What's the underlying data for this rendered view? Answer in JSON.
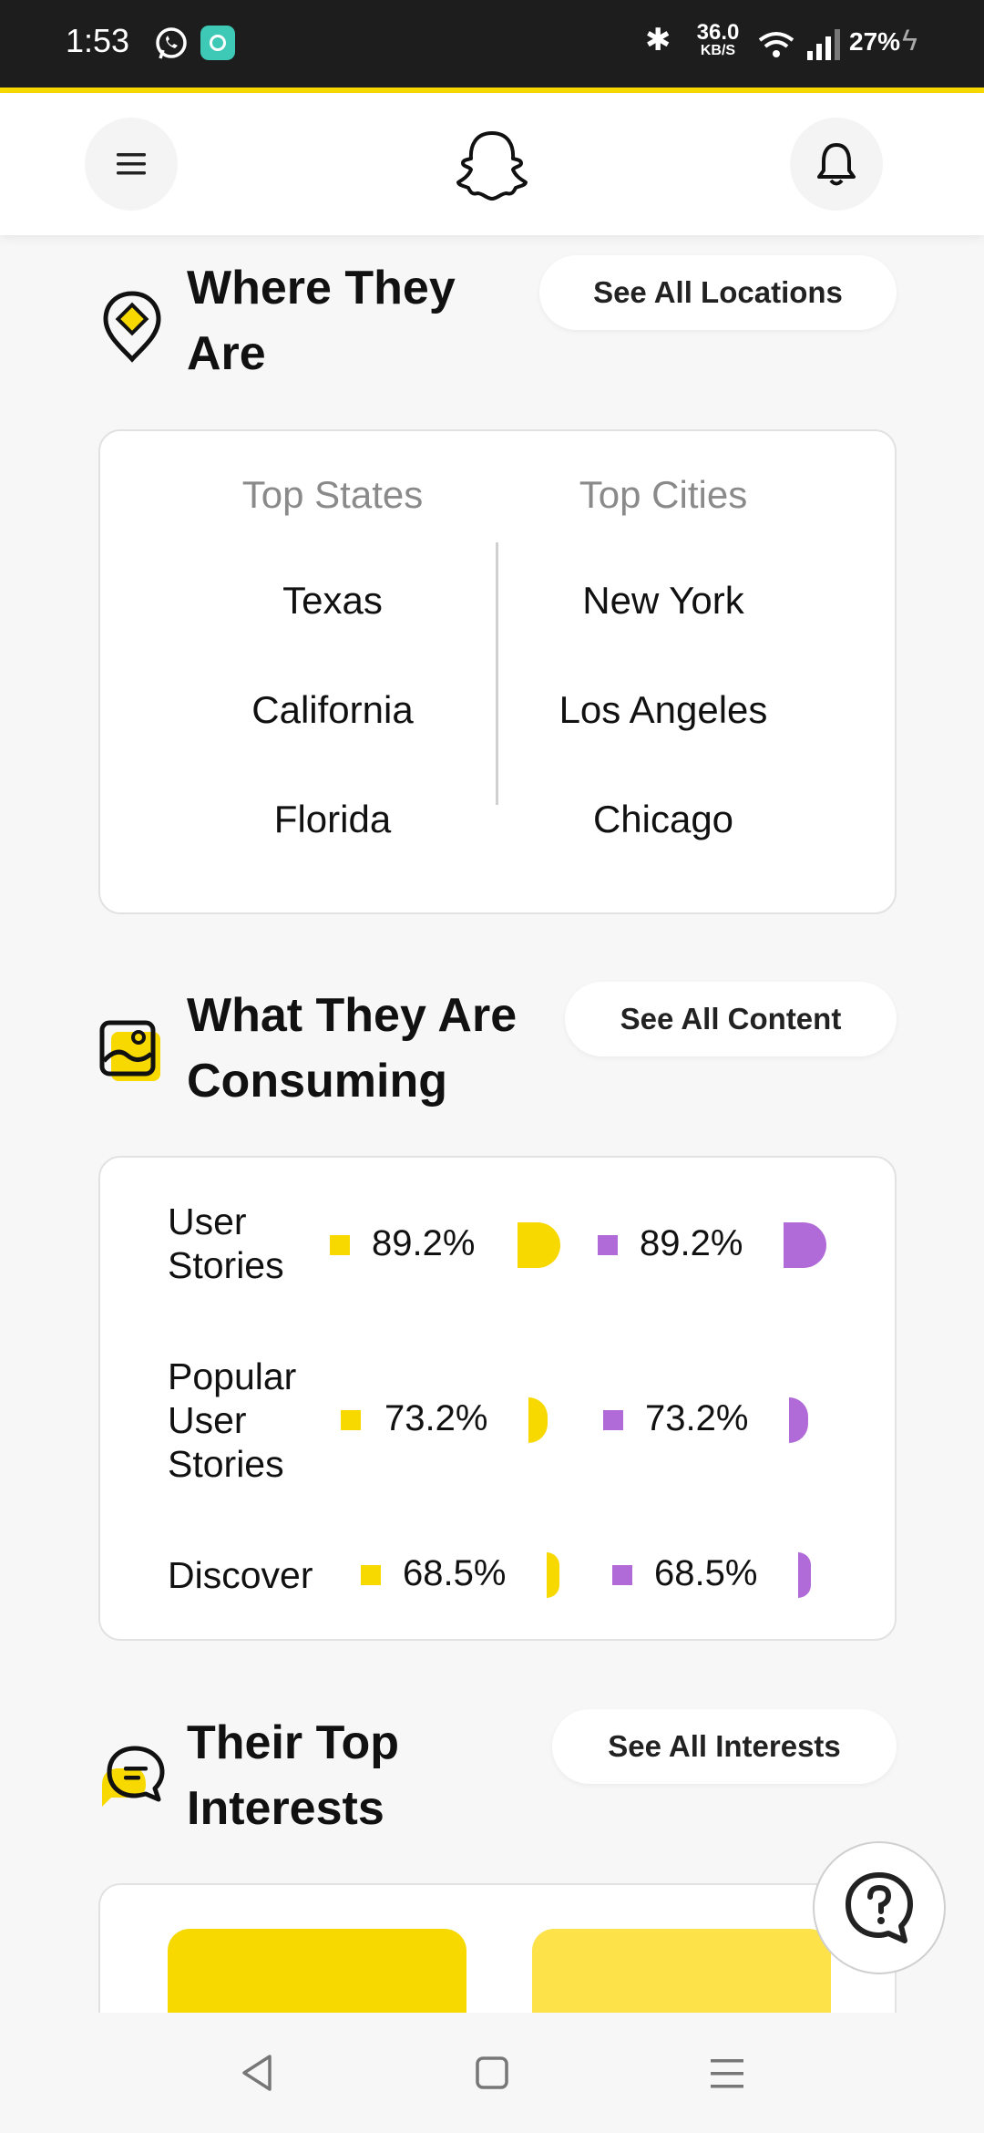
{
  "status_bar": {
    "time": "1:53",
    "net_speed_value": "36.0",
    "net_speed_unit": "KB/S",
    "battery": "27%"
  },
  "colors": {
    "brand_yellow": "#f7d900",
    "purple": "#b06bd9",
    "light_yellow": "#fde24a"
  },
  "header": {
    "menu_icon": "menu-icon",
    "logo_icon": "ghost-logo-icon",
    "bell_icon": "bell-icon"
  },
  "locations": {
    "title_line1": "Where They",
    "title_line2": "Are",
    "button": "See All Locations",
    "top_states_header": "Top States",
    "top_cities_header": "Top Cities",
    "states": [
      "Texas",
      "California",
      "Florida"
    ],
    "cities": [
      "New York",
      "Los Angeles",
      "Chicago"
    ]
  },
  "content": {
    "title_line1": "What They Are",
    "title_line2": "Consuming",
    "button": "See All Content",
    "rows": [
      {
        "label_lines": [
          "User",
          "Stories"
        ],
        "value_a": "89.2%",
        "value_b": "89.2%",
        "fraction": 0.892
      },
      {
        "label_lines": [
          "Popular",
          "User",
          "Stories"
        ],
        "value_a": "73.2%",
        "value_b": "73.2%",
        "fraction": 0.732
      },
      {
        "label_lines": [
          "Discover"
        ],
        "value_a": "68.5%",
        "value_b": "68.5%",
        "fraction": 0.685
      }
    ]
  },
  "interests": {
    "title_line1": "Their Top",
    "title_line2": "Interests",
    "button": "See All Interests"
  },
  "help_icon": "help-chat-icon",
  "nav": {
    "back_icon": "back-icon",
    "home_icon": "home-icon",
    "recents_icon": "recents-icon"
  }
}
